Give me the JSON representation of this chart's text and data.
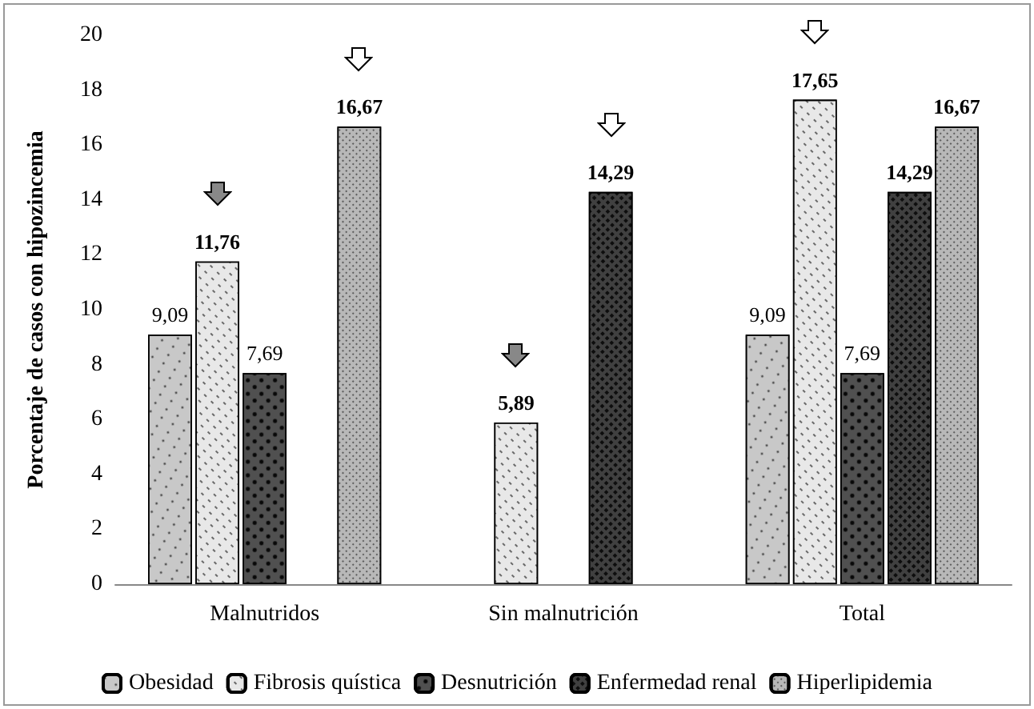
{
  "chart_data": {
    "type": "bar",
    "ylabel": "Porcentaje de casos con hipozincemia",
    "categories": [
      "Malnutridos",
      "Sin malnutrición",
      "Total"
    ],
    "series": [
      {
        "name": "Obesidad",
        "color": "#c8c8c8",
        "values": [
          9.09,
          null,
          9.09
        ],
        "value_labels": [
          "9,09",
          null,
          "9,09"
        ]
      },
      {
        "name": "Fibrosis quística",
        "color": "#e8e8e8",
        "values": [
          11.76,
          5.89,
          17.65
        ],
        "value_labels": [
          "11,76",
          "5,89",
          "17,65"
        ]
      },
      {
        "name": "Desnutrición",
        "color": "#505050",
        "values": [
          7.69,
          null,
          7.69
        ],
        "value_labels": [
          "7,69",
          null,
          "7,69"
        ]
      },
      {
        "name": "Enfermedad renal",
        "color": "#404040",
        "values": [
          null,
          14.29,
          14.29
        ],
        "value_labels": [
          null,
          "14,29",
          "14,29"
        ]
      },
      {
        "name": "Hiperlipidemia",
        "color": "#b8b8b8",
        "values": [
          16.67,
          null,
          16.67
        ],
        "value_labels": [
          "16,67",
          null,
          "16,67"
        ]
      }
    ],
    "ylim": [
      0,
      20
    ],
    "yticks": [
      0,
      2,
      4,
      6,
      8,
      10,
      12,
      14,
      16,
      18,
      20
    ],
    "grid": false,
    "legend": "bottom"
  }
}
